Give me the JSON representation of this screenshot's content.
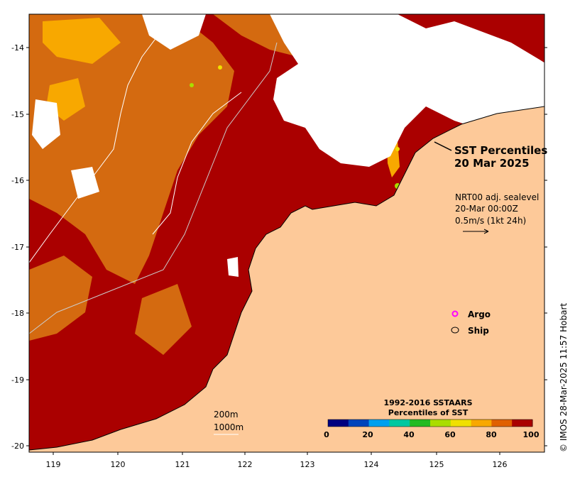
{
  "title": {
    "line1": "SST Percentiles",
    "line2": "20 Mar 2025"
  },
  "current_info": {
    "line1": "NRT00 adj. sealevel",
    "line2": "20-Mar 00:00Z",
    "line3": "0.5m/s (1kt 24h)"
  },
  "legend": {
    "argo": "Argo",
    "ship": "Ship"
  },
  "colorbar": {
    "title1": "1992-2016 SSTAARS",
    "title2": "Percentiles of SST",
    "ticks": [
      "0",
      "20",
      "40",
      "60",
      "80",
      "100"
    ],
    "colors": [
      "#000080",
      "#0044bb",
      "#00a0ee",
      "#00c8a0",
      "#22bb22",
      "#aadd00",
      "#f0e000",
      "#f8a800",
      "#e06000",
      "#aa0000"
    ]
  },
  "contours": {
    "c1": "200m",
    "c2": "1000m"
  },
  "credit": "© IMOS 28-Mar-2025 11:57 Hobart",
  "axes": {
    "x_ticks": [
      "119",
      "120",
      "121",
      "122",
      "123",
      "124",
      "125",
      "126"
    ],
    "y_ticks": [
      "-14",
      "-15",
      "-16",
      "-17",
      "-18",
      "-19",
      "-20"
    ]
  },
  "colors": {
    "land": "#fdc999",
    "dark_red": "#aa0000",
    "orange_brown": "#d46a10",
    "cloud": "#ffffff",
    "argo_marker": "#ff00ff"
  }
}
